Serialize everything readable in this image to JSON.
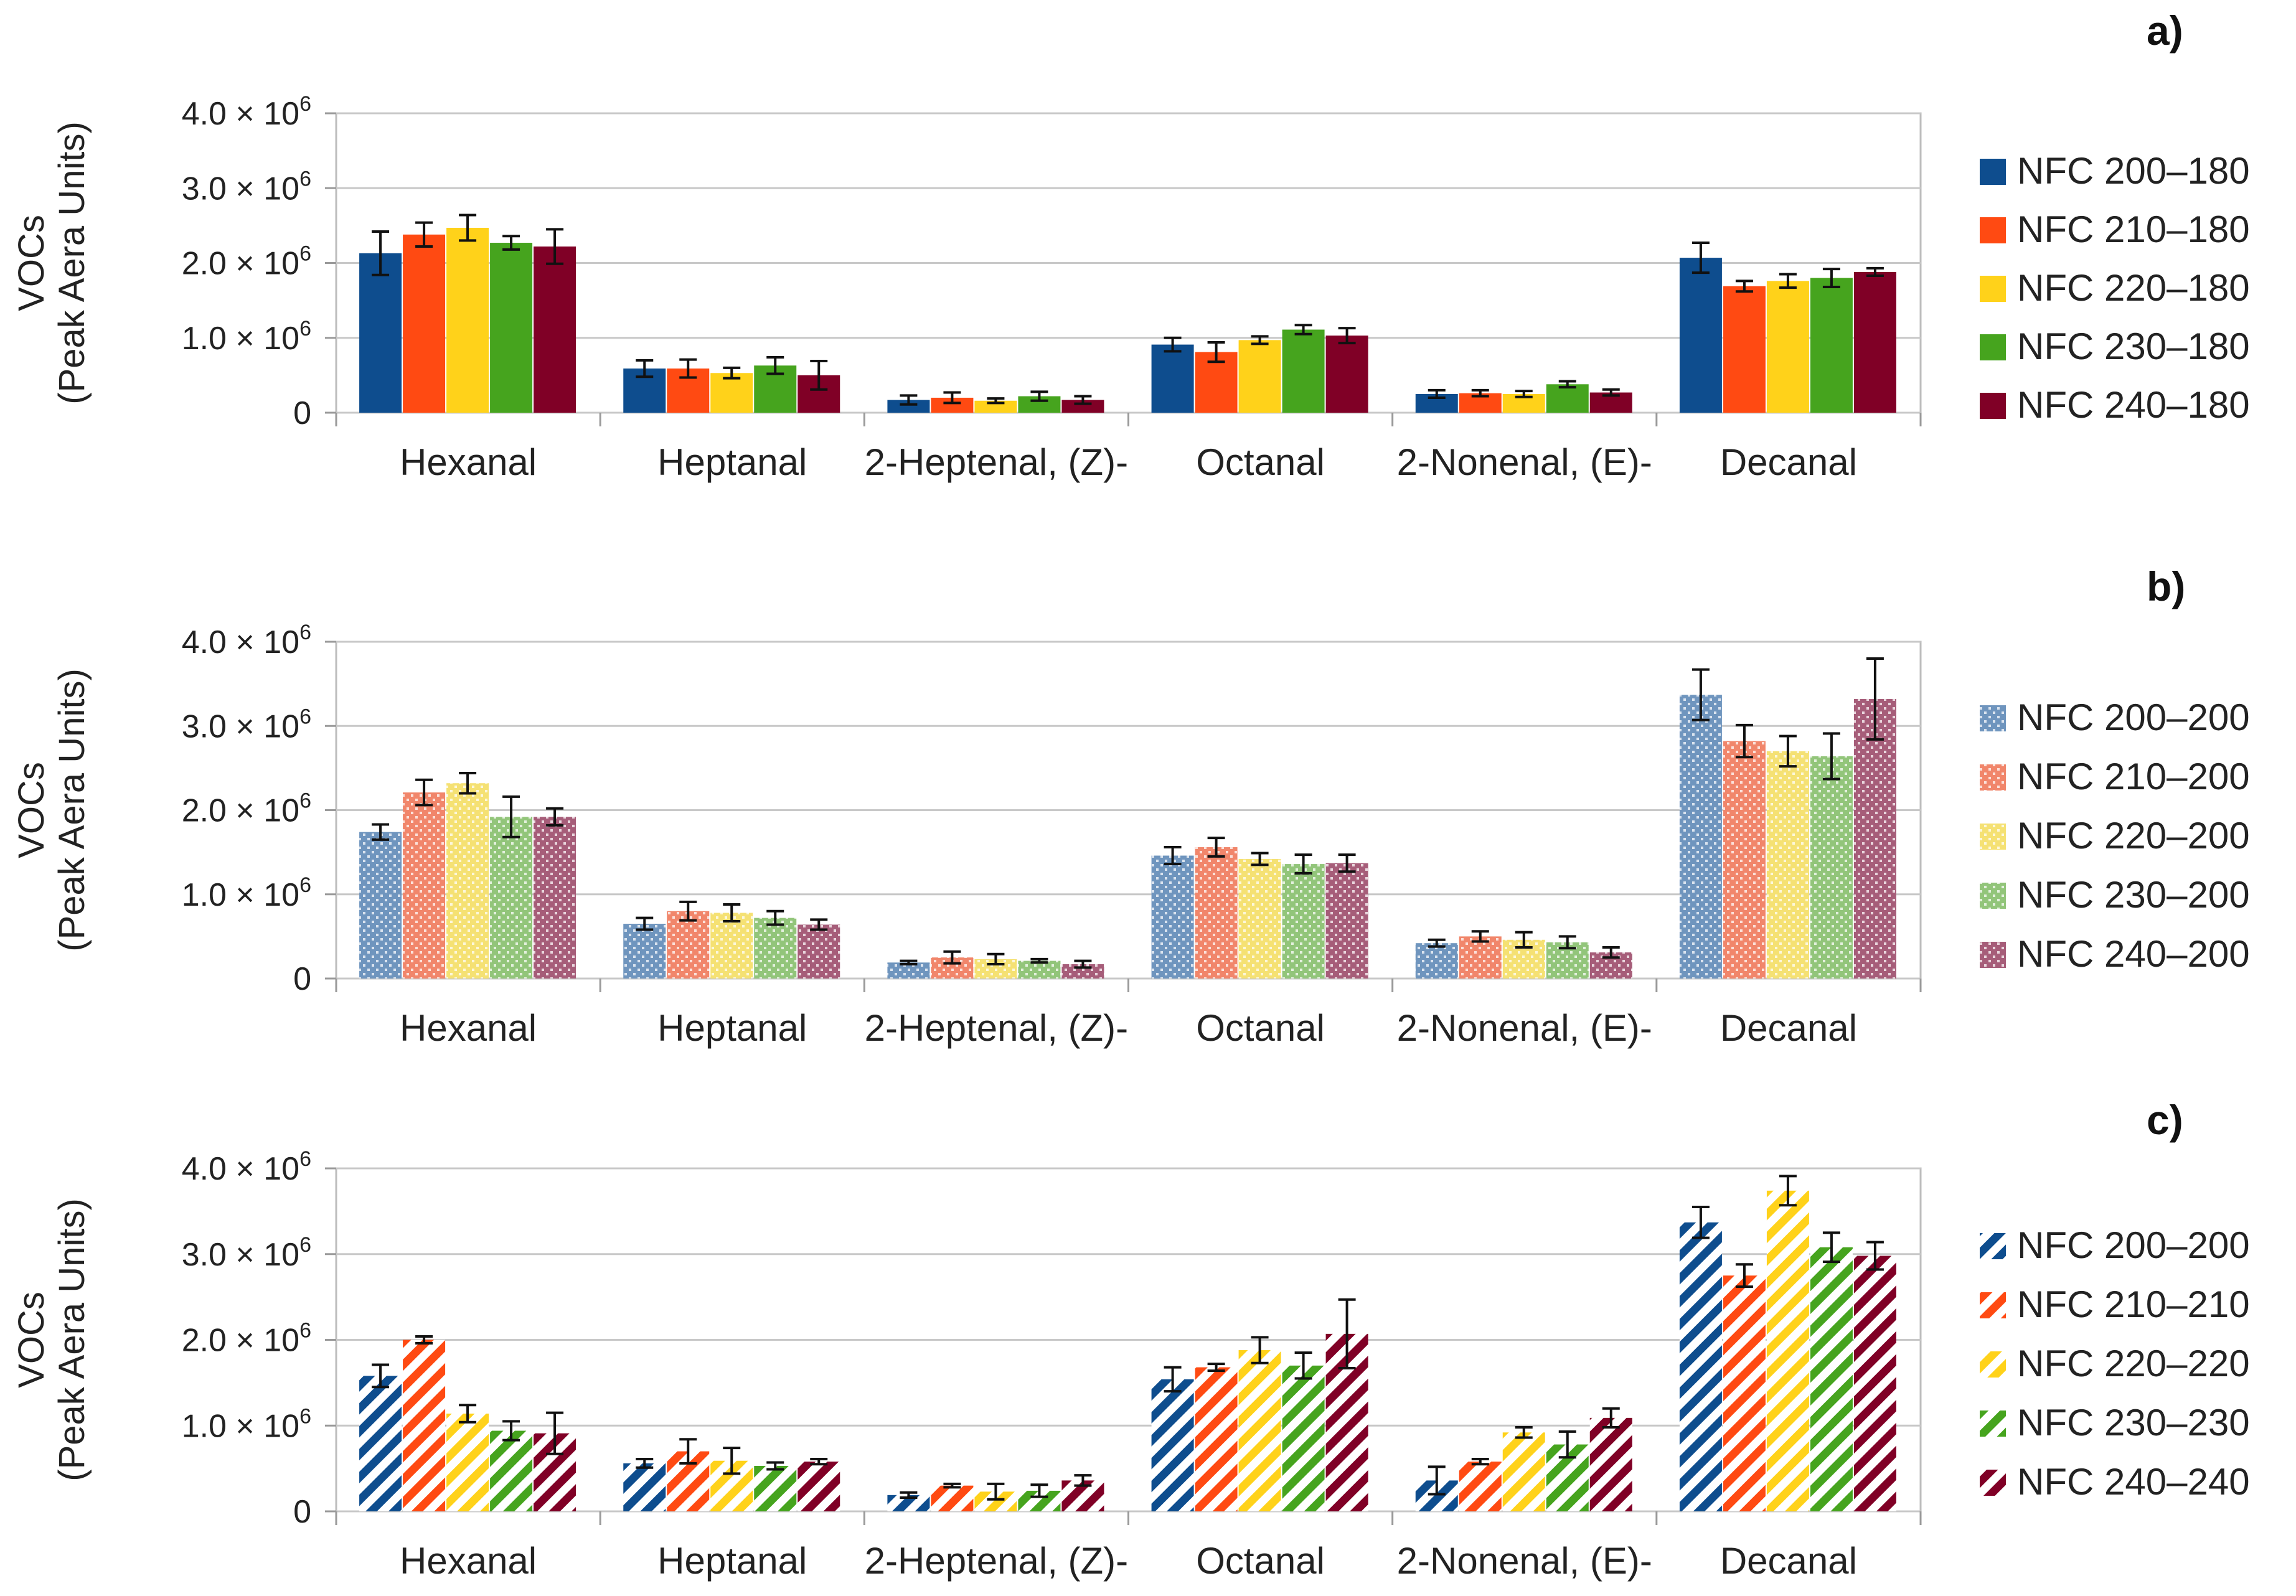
{
  "figure": {
    "y_axis_label_line1": "VOCs",
    "y_axis_label_line2": "(Peak Aera Units)",
    "y_tick_mantissas": [
      "0",
      "1.0",
      "2.0",
      "3.0",
      "4.0"
    ],
    "y_tick_suffix": " × 10",
    "y_tick_exponent": "6"
  },
  "chart_data": [
    {
      "panel_label": "a)",
      "type": "bar",
      "fill_style": "solid",
      "title": "",
      "xlabel": "",
      "ylabel": "VOCs (Peak Aera Units)",
      "ylim": [
        0,
        4000000
      ],
      "y_ticks": [
        0,
        1000000,
        2000000,
        3000000,
        4000000
      ],
      "grid": true,
      "legend_position": "right",
      "categories": [
        "Hexanal",
        "Heptanal",
        "2-Heptenal, (Z)-",
        "Octanal",
        "2-Nonenal, (E)-",
        "Decanal"
      ],
      "series": [
        {
          "name": "NFC 200–180",
          "color": "#0E4D8E",
          "values": [
            2130000,
            590000,
            170000,
            910000,
            250000,
            2070000
          ],
          "errors": [
            290000,
            110000,
            60000,
            90000,
            50000,
            200000
          ]
        },
        {
          "name": "NFC 210–180",
          "color": "#FF4A12",
          "values": [
            2380000,
            590000,
            200000,
            810000,
            260000,
            1690000
          ],
          "errors": [
            160000,
            120000,
            70000,
            130000,
            40000,
            70000
          ]
        },
        {
          "name": "NFC 220–180",
          "color": "#FFD21A",
          "values": [
            2470000,
            530000,
            160000,
            970000,
            250000,
            1760000
          ],
          "errors": [
            170000,
            70000,
            30000,
            50000,
            40000,
            90000
          ]
        },
        {
          "name": "NFC 230–180",
          "color": "#46A41E",
          "values": [
            2270000,
            630000,
            220000,
            1110000,
            380000,
            1800000
          ],
          "errors": [
            90000,
            110000,
            60000,
            60000,
            40000,
            120000
          ]
        },
        {
          "name": "NFC 240–180",
          "color": "#800026",
          "values": [
            2220000,
            500000,
            170000,
            1030000,
            270000,
            1880000
          ],
          "errors": [
            230000,
            190000,
            50000,
            100000,
            40000,
            50000
          ]
        }
      ]
    },
    {
      "panel_label": "b)",
      "type": "bar",
      "fill_style": "dotted",
      "title": "",
      "xlabel": "",
      "ylabel": "VOCs (Peak Aera Units)",
      "ylim": [
        0,
        4000000
      ],
      "y_ticks": [
        0,
        1000000,
        2000000,
        3000000,
        4000000
      ],
      "grid": true,
      "legend_position": "right",
      "categories": [
        "Hexanal",
        "Heptanal",
        "2-Heptenal, (Z)-",
        "Octanal",
        "2-Nonenal, (E)-",
        "Decanal"
      ],
      "series": [
        {
          "name": "NFC 200–200",
          "color": "#6F95BE",
          "values": [
            1740000,
            650000,
            190000,
            1460000,
            420000,
            3370000
          ],
          "errors": [
            90000,
            70000,
            20000,
            100000,
            40000,
            300000
          ]
        },
        {
          "name": "NFC 210–200",
          "color": "#F1866B",
          "values": [
            2210000,
            800000,
            250000,
            1560000,
            500000,
            2820000
          ],
          "errors": [
            150000,
            110000,
            70000,
            110000,
            60000,
            190000
          ]
        },
        {
          "name": "NFC 220–200",
          "color": "#F5E173",
          "values": [
            2320000,
            780000,
            230000,
            1420000,
            460000,
            2700000
          ],
          "errors": [
            120000,
            100000,
            60000,
            70000,
            90000,
            180000
          ]
        },
        {
          "name": "NFC 230–200",
          "color": "#92C57A",
          "values": [
            1920000,
            720000,
            210000,
            1360000,
            430000,
            2640000
          ],
          "errors": [
            240000,
            80000,
            20000,
            110000,
            70000,
            270000
          ]
        },
        {
          "name": "NFC 240–200",
          "color": "#A65D79",
          "values": [
            1920000,
            640000,
            170000,
            1370000,
            310000,
            3320000
          ],
          "errors": [
            100000,
            60000,
            40000,
            100000,
            60000,
            480000
          ]
        }
      ]
    },
    {
      "panel_label": "c)",
      "type": "bar",
      "fill_style": "hatched",
      "title": "",
      "xlabel": "",
      "ylabel": "VOCs (Peak Aera Units)",
      "ylim": [
        0,
        4000000
      ],
      "y_ticks": [
        0,
        1000000,
        2000000,
        3000000,
        4000000
      ],
      "grid": true,
      "legend_position": "right",
      "categories": [
        "Hexanal",
        "Heptanal",
        "2-Heptenal, (Z)-",
        "Octanal",
        "2-Nonenal, (E)-",
        "Decanal"
      ],
      "series": [
        {
          "name": "NFC 200–200",
          "color": "#0E4D8E",
          "values": [
            1580000,
            560000,
            190000,
            1540000,
            360000,
            3370000
          ],
          "errors": [
            130000,
            50000,
            30000,
            140000,
            160000,
            180000
          ]
        },
        {
          "name": "NFC 210–210",
          "color": "#FF4A12",
          "values": [
            2000000,
            700000,
            300000,
            1680000,
            580000,
            2750000
          ],
          "errors": [
            40000,
            140000,
            20000,
            40000,
            30000,
            130000
          ]
        },
        {
          "name": "NFC 220–220",
          "color": "#FFD21A",
          "values": [
            1140000,
            590000,
            230000,
            1880000,
            920000,
            3740000
          ],
          "errors": [
            100000,
            150000,
            90000,
            150000,
            60000,
            170000
          ]
        },
        {
          "name": "NFC 230–230",
          "color": "#46A41E",
          "values": [
            940000,
            530000,
            240000,
            1700000,
            780000,
            3080000
          ],
          "errors": [
            110000,
            40000,
            70000,
            150000,
            150000,
            170000
          ]
        },
        {
          "name": "NFC 240–240",
          "color": "#800026",
          "values": [
            910000,
            580000,
            360000,
            2070000,
            1090000,
            2980000
          ],
          "errors": [
            240000,
            30000,
            60000,
            400000,
            110000,
            160000
          ]
        }
      ]
    }
  ]
}
